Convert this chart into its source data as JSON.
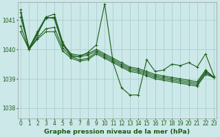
{
  "background_color": "#cce8e8",
  "grid_color": "#aacfcf",
  "line_color": "#1a5c1a",
  "title": "Graphe pression niveau de la mer (hPa)",
  "title_fontsize": 6.8,
  "tick_fontsize": 5.5,
  "ylim": [
    1037.65,
    1041.6
  ],
  "xlim": [
    -0.3,
    23.3
  ],
  "yticks": [
    1038,
    1039,
    1040,
    1041
  ],
  "xticks": [
    0,
    1,
    2,
    3,
    4,
    5,
    6,
    7,
    8,
    9,
    10,
    11,
    12,
    13,
    14,
    15,
    16,
    17,
    18,
    19,
    20,
    21,
    22,
    23
  ],
  "series_volatile": [
    1041.35,
    1040.0,
    1040.5,
    1041.1,
    1041.2,
    1040.25,
    1039.75,
    1039.75,
    1039.9,
    1040.15,
    1041.55,
    1039.55,
    1038.7,
    1038.45,
    1038.45,
    1039.65,
    1039.25,
    1039.3,
    1039.5,
    1039.45,
    1039.55,
    1039.4,
    1039.85,
    1039.1
  ],
  "series_trend1": [
    1041.25,
    1040.05,
    1040.55,
    1041.05,
    1041.1,
    1040.2,
    1039.85,
    1039.8,
    1039.85,
    1040.0,
    1039.85,
    1039.7,
    1039.55,
    1039.4,
    1039.35,
    1039.25,
    1039.15,
    1039.1,
    1039.05,
    1039.0,
    1038.95,
    1038.9,
    1039.3,
    1039.05
  ],
  "series_trend2": [
    1041.1,
    1040.05,
    1040.6,
    1041.1,
    1041.05,
    1040.15,
    1039.8,
    1039.75,
    1039.8,
    1039.95,
    1039.8,
    1039.65,
    1039.5,
    1039.35,
    1039.3,
    1039.2,
    1039.1,
    1039.05,
    1039.0,
    1038.95,
    1038.9,
    1038.85,
    1039.25,
    1039.05
  ],
  "series_trend3": [
    1040.8,
    1040.0,
    1040.4,
    1040.7,
    1040.75,
    1040.05,
    1039.75,
    1039.65,
    1039.7,
    1039.9,
    1039.75,
    1039.6,
    1039.45,
    1039.3,
    1039.25,
    1039.15,
    1039.05,
    1039.0,
    1038.95,
    1038.9,
    1038.85,
    1038.8,
    1039.2,
    1039.05
  ],
  "series_trend4": [
    1040.6,
    1040.0,
    1040.35,
    1040.6,
    1040.6,
    1039.95,
    1039.7,
    1039.6,
    1039.65,
    1039.85,
    1039.7,
    1039.55,
    1039.4,
    1039.25,
    1039.2,
    1039.1,
    1039.0,
    1038.95,
    1038.9,
    1038.85,
    1038.8,
    1038.75,
    1039.15,
    1039.05
  ]
}
